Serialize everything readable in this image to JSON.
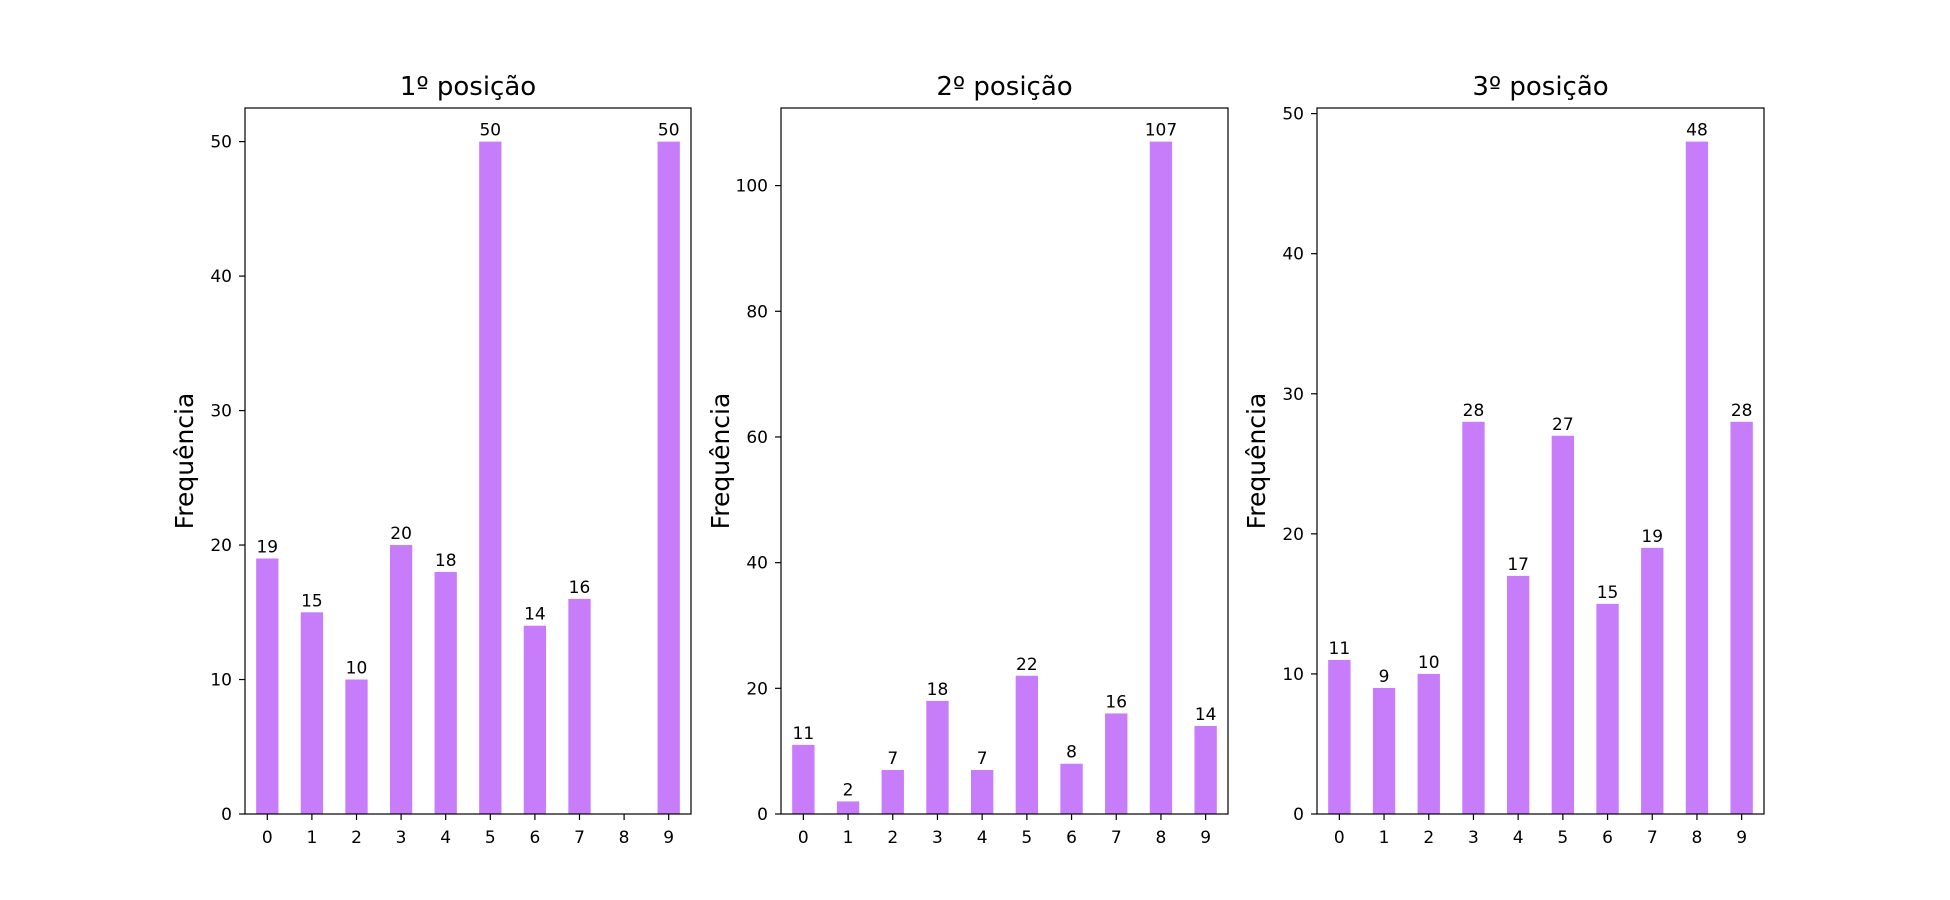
{
  "bar_color": "#c77cfa",
  "chart_data": [
    {
      "type": "bar",
      "title": "1º posição",
      "ylabel": "Frequência",
      "categories": [
        "0",
        "1",
        "2",
        "3",
        "4",
        "5",
        "6",
        "7",
        "8",
        "9"
      ],
      "values": [
        19,
        15,
        10,
        20,
        18,
        50,
        14,
        16,
        0,
        50
      ],
      "data_labels": [
        "19",
        "15",
        "10",
        "20",
        "18",
        "50",
        "14",
        "16",
        "",
        "50"
      ],
      "ylim": [
        0,
        52.5
      ],
      "yticks": [
        0,
        10,
        20,
        30,
        40,
        50
      ],
      "grid": false,
      "legend": "none"
    },
    {
      "type": "bar",
      "title": "2º posição",
      "ylabel": "Frequência",
      "categories": [
        "0",
        "1",
        "2",
        "3",
        "4",
        "5",
        "6",
        "7",
        "8",
        "9"
      ],
      "values": [
        11,
        2,
        7,
        18,
        7,
        22,
        8,
        16,
        107,
        14
      ],
      "data_labels": [
        "11",
        "2",
        "7",
        "18",
        "7",
        "22",
        "8",
        "16",
        "107",
        "14"
      ],
      "ylim": [
        0,
        112.35
      ],
      "yticks": [
        0,
        20,
        40,
        60,
        80,
        100
      ],
      "grid": false,
      "legend": "none"
    },
    {
      "type": "bar",
      "title": "3º posição",
      "ylabel": "Frequência",
      "categories": [
        "0",
        "1",
        "2",
        "3",
        "4",
        "5",
        "6",
        "7",
        "8",
        "9"
      ],
      "values": [
        11,
        9,
        10,
        28,
        17,
        27,
        15,
        19,
        48,
        28
      ],
      "data_labels": [
        "11",
        "9",
        "10",
        "28",
        "17",
        "27",
        "15",
        "19",
        "48",
        "28"
      ],
      "ylim": [
        0,
        50.4
      ],
      "yticks": [
        0,
        10,
        20,
        30,
        40,
        50
      ],
      "grid": false,
      "legend": "none"
    }
  ]
}
